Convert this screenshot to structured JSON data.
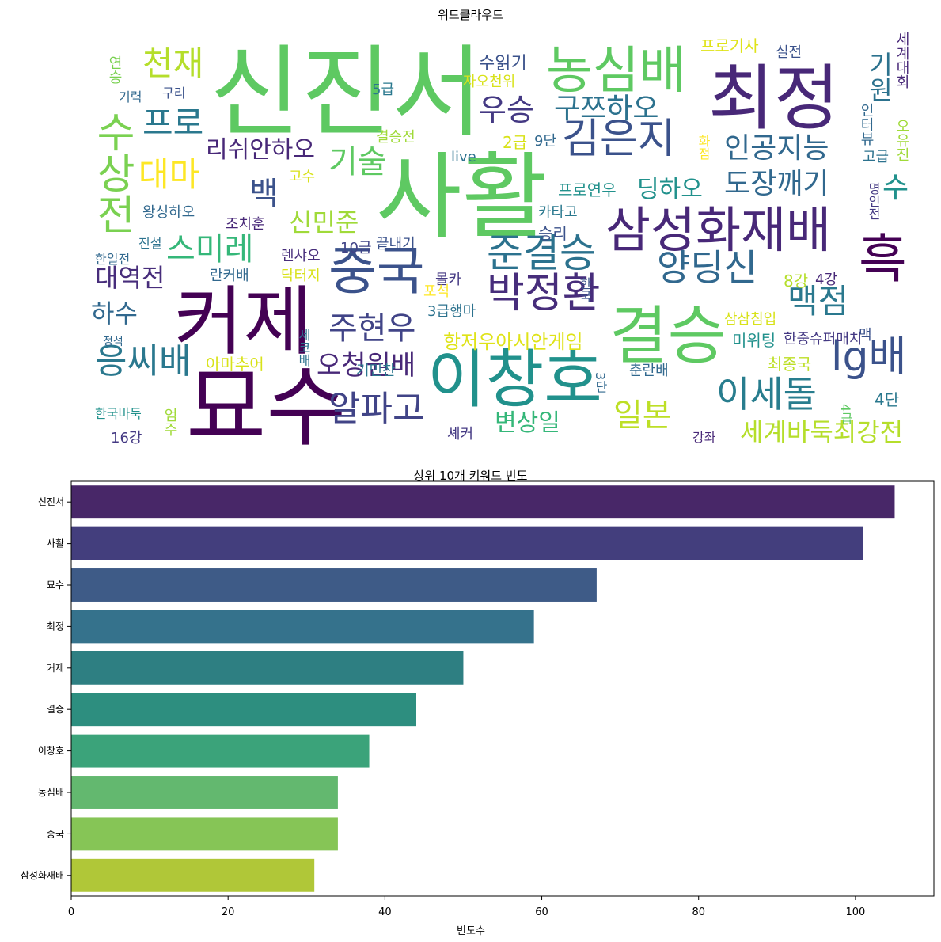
{
  "wordcloud": {
    "title": "워드클라우드",
    "words": [
      {
        "text": "신진서",
        "color": "#5ec962"
      },
      {
        "text": "사활",
        "color": "#5ec962"
      },
      {
        "text": "묘수",
        "color": "#440154"
      },
      {
        "text": "최정",
        "color": "#482878"
      },
      {
        "text": "커제",
        "color": "#440154"
      },
      {
        "text": "결승",
        "color": "#5ec962"
      },
      {
        "text": "이창호",
        "color": "#21918c"
      },
      {
        "text": "농심배",
        "color": "#5ec962"
      },
      {
        "text": "중국",
        "color": "#3b528b"
      },
      {
        "text": "삼성화재배",
        "color": "#482878"
      },
      {
        "text": "흑",
        "color": "#440154"
      },
      {
        "text": "박정환",
        "color": "#472d7b"
      },
      {
        "text": "수상전",
        "color": "#7ad151"
      },
      {
        "text": "김은지",
        "color": "#3b528b"
      },
      {
        "text": "준결승",
        "color": "#2c728e"
      },
      {
        "text": "lg배",
        "color": "#3b528b"
      },
      {
        "text": "양딩신",
        "color": "#31688e"
      },
      {
        "text": "이세돌",
        "color": "#287d8e"
      },
      {
        "text": "알파고",
        "color": "#414487"
      },
      {
        "text": "응씨배",
        "color": "#2a788e"
      },
      {
        "text": "천재",
        "color": "#b5de2b"
      },
      {
        "text": "프로",
        "color": "#2a788e"
      },
      {
        "text": "대마",
        "color": "#fde725"
      },
      {
        "text": "백",
        "color": "#3b528b"
      },
      {
        "text": "우승",
        "color": "#443983"
      },
      {
        "text": "구쯔하오",
        "color": "#2c728e"
      },
      {
        "text": "기술",
        "color": "#5ec962"
      },
      {
        "text": "인공지능",
        "color": "#31688e"
      },
      {
        "text": "도장깨기",
        "color": "#31688e"
      },
      {
        "text": "수",
        "color": "#21918c"
      },
      {
        "text": "스미레",
        "color": "#35b779"
      },
      {
        "text": "맥점",
        "color": "#2a788e"
      },
      {
        "text": "주현우",
        "color": "#414487"
      },
      {
        "text": "오청원배",
        "color": "#482878"
      },
      {
        "text": "일본",
        "color": "#bddf26"
      },
      {
        "text": "변상일",
        "color": "#35b779"
      },
      {
        "text": "세계바둑최강전",
        "color": "#b5de2b"
      },
      {
        "text": "기원",
        "color": "#2c728e"
      },
      {
        "text": "리쉬안하오",
        "color": "#482878"
      },
      {
        "text": "신민준",
        "color": "#a0da39"
      },
      {
        "text": "딩하오",
        "color": "#21918c"
      },
      {
        "text": "대역전",
        "color": "#472d7b"
      },
      {
        "text": "하수",
        "color": "#31688e"
      },
      {
        "text": "항저우아시안게임",
        "color": "#dfe318"
      },
      {
        "text": "수읽기",
        "color": "#3b528b"
      },
      {
        "text": "2급",
        "color": "#d8e219"
      },
      {
        "text": "9단",
        "color": "#31688e"
      },
      {
        "text": "8강",
        "color": "#b5de2b"
      },
      {
        "text": "4강",
        "color": "#482878"
      },
      {
        "text": "4단",
        "color": "#2a788e"
      },
      {
        "text": "최종국",
        "color": "#bddf26"
      },
      {
        "text": "미위팅",
        "color": "#21918c"
      },
      {
        "text": "한중슈퍼매치",
        "color": "#443983"
      },
      {
        "text": "아마추어",
        "color": "#d8e219"
      },
      {
        "text": "실전",
        "color": "#3b528b"
      },
      {
        "text": "프로기사",
        "color": "#dfe318"
      },
      {
        "text": "세계대회",
        "color": "#482878"
      },
      {
        "text": "인터뷰",
        "color": "#31688e"
      },
      {
        "text": "고급",
        "color": "#2c728e"
      },
      {
        "text": "오유진",
        "color": "#a0da39"
      },
      {
        "text": "명인전",
        "color": "#443983"
      },
      {
        "text": "화점",
        "color": "#fde725"
      },
      {
        "text": "5급",
        "color": "#2a788e"
      },
      {
        "text": "자오천위",
        "color": "#d8e219"
      },
      {
        "text": "결승전",
        "color": "#a0da39"
      },
      {
        "text": "live",
        "color": "#2c728e"
      },
      {
        "text": "프로연우",
        "color": "#21918c"
      },
      {
        "text": "카타고",
        "color": "#2a788e"
      },
      {
        "text": "승리",
        "color": "#3b528b"
      },
      {
        "text": "고수",
        "color": "#d8e219"
      },
      {
        "text": "왕싱하오",
        "color": "#31688e"
      },
      {
        "text": "조치훈",
        "color": "#482878"
      },
      {
        "text": "끝내기",
        "color": "#3b528b"
      },
      {
        "text": "10급",
        "color": "#414487"
      },
      {
        "text": "렌샤오",
        "color": "#472d7b"
      },
      {
        "text": "몰카",
        "color": "#443983"
      },
      {
        "text": "닥터지",
        "color": "#d8e219"
      },
      {
        "text": "란커배",
        "color": "#31688e"
      },
      {
        "text": "포석",
        "color": "#fde725"
      },
      {
        "text": "3급행마",
        "color": "#2c728e"
      },
      {
        "text": "한국",
        "color": "#3b528b"
      },
      {
        "text": "삼삼침입",
        "color": "#d8e219"
      },
      {
        "text": "맥",
        "color": "#3b528b"
      },
      {
        "text": "기민찬",
        "color": "#2a788e"
      },
      {
        "text": "3단",
        "color": "#31688e"
      },
      {
        "text": "춘란배",
        "color": "#31688e"
      },
      {
        "text": "4급",
        "color": "#5ec962"
      },
      {
        "text": "강좌",
        "color": "#482878"
      },
      {
        "text": "셰커",
        "color": "#443983"
      },
      {
        "text": "16강",
        "color": "#443983"
      },
      {
        "text": "한국바둑",
        "color": "#21918c"
      },
      {
        "text": "엄주",
        "color": "#a0da39"
      },
      {
        "text": "정석",
        "color": "#31688e"
      },
      {
        "text": "세코배",
        "color": "#2c728e"
      },
      {
        "text": "한일전",
        "color": "#31688e"
      },
      {
        "text": "전설",
        "color": "#2c728e"
      },
      {
        "text": "기력",
        "color": "#31688e"
      },
      {
        "text": "구리",
        "color": "#3b528b"
      },
      {
        "text": "연승",
        "color": "#7ad151"
      }
    ]
  },
  "chart_data": {
    "type": "bar",
    "orientation": "horizontal",
    "title": "상위 10개 키워드 빈도",
    "xlabel": "빈도수",
    "ylabel": "",
    "categories": [
      "신진서",
      "사활",
      "묘수",
      "최정",
      "커제",
      "결승",
      "이창호",
      "농심배",
      "중국",
      "삼성화재배"
    ],
    "values": [
      105,
      101,
      67,
      59,
      50,
      44,
      38,
      34,
      34,
      31
    ],
    "colors": [
      "#482768",
      "#433e7d",
      "#3e5b87",
      "#35728c",
      "#2e7f82",
      "#2d8e7f",
      "#3ba37a",
      "#63b86f",
      "#86c556",
      "#b0c738"
    ],
    "xlim": [
      0,
      110
    ],
    "xticks": [
      0,
      20,
      40,
      60,
      80,
      100
    ],
    "grid": false
  }
}
